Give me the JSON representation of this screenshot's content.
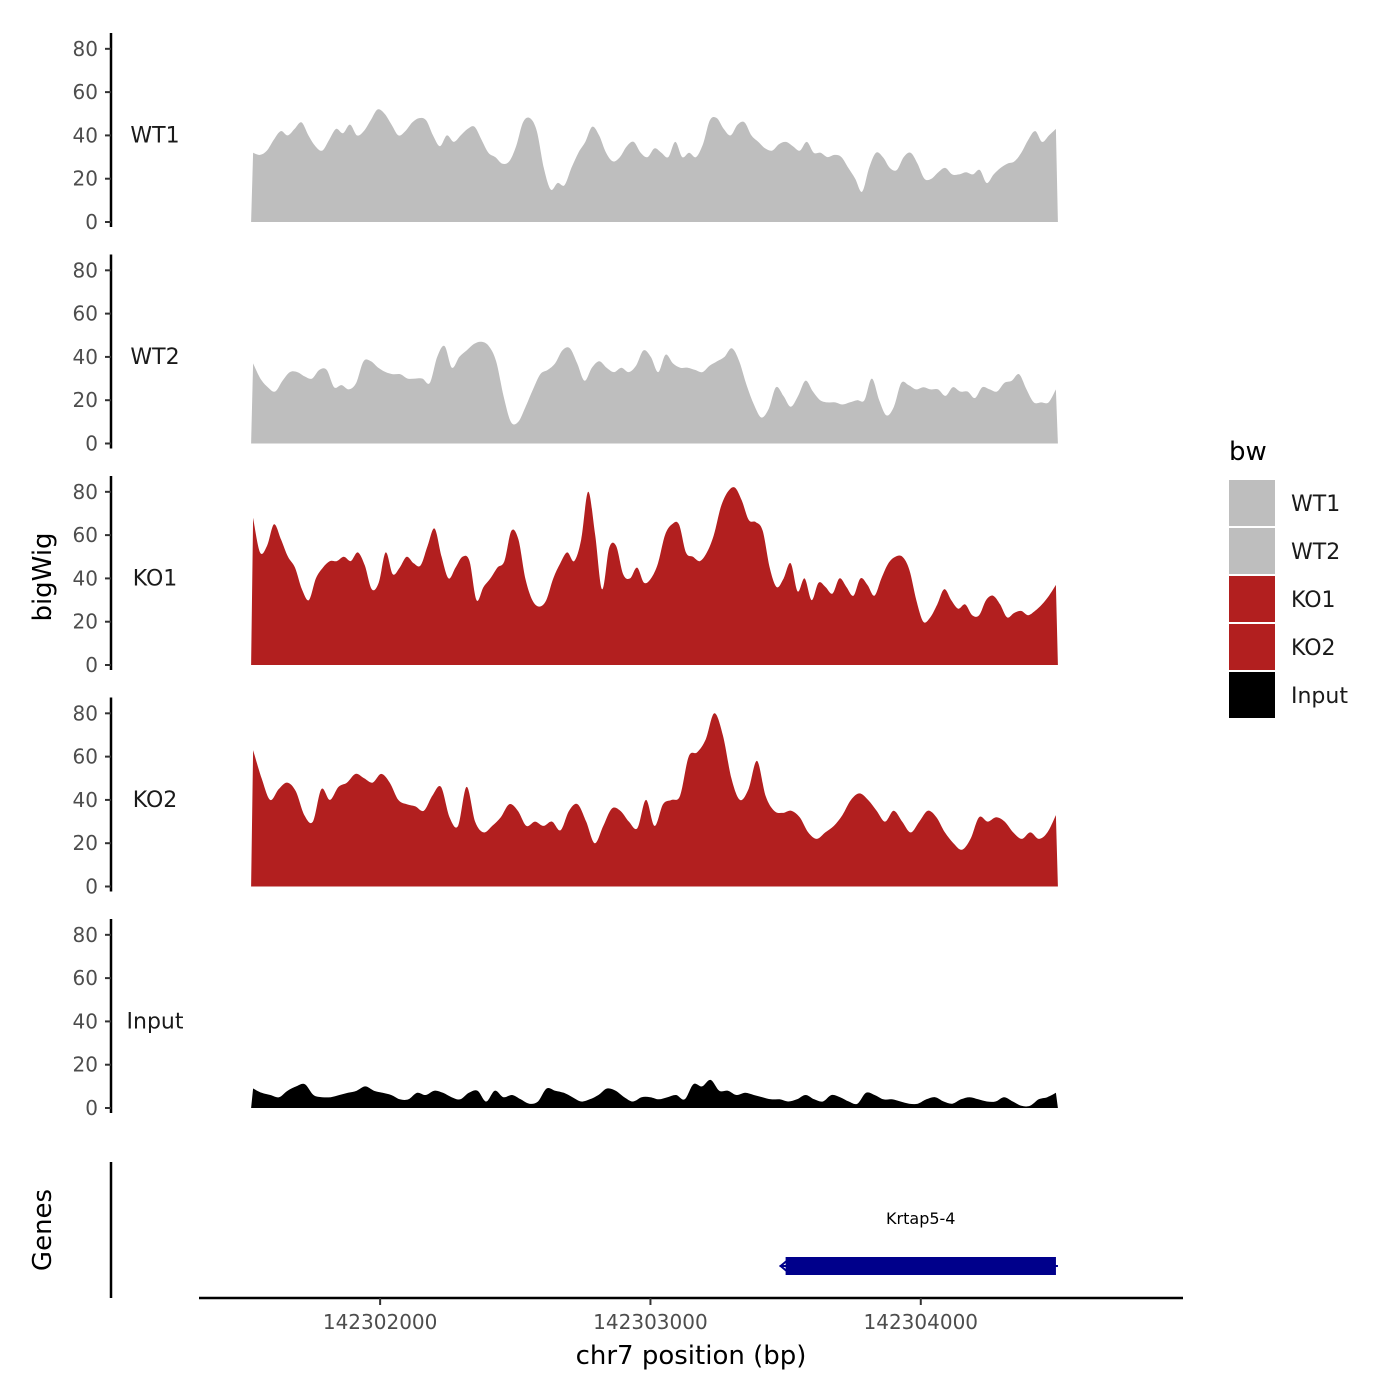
{
  "chart_data": {
    "type": "area",
    "ylabel": "bigWig",
    "xlabel": "chr7 position (bp)",
    "gene_track_label": "Genes",
    "ylim": [
      0,
      85
    ],
    "yticks": [
      0,
      20,
      40,
      60,
      80
    ],
    "xlim": [
      142301330,
      142304970
    ],
    "xticks": [
      142302000,
      142303000,
      142304000
    ],
    "x_start": 142301530,
    "x_end": 142304500,
    "legend": {
      "title": "bw",
      "placement": "right",
      "entries": [
        {
          "label": "WT1",
          "color": "#bebebe"
        },
        {
          "label": "WT2",
          "color": "#bebebe"
        },
        {
          "label": "KO1",
          "color": "#b21f1f"
        },
        {
          "label": "KO2",
          "color": "#b21f1f"
        },
        {
          "label": "Input",
          "color": "#000000"
        }
      ]
    },
    "series": [
      {
        "name": "WT1",
        "color": "#bebebe",
        "values": [
          32,
          31,
          33,
          38,
          42,
          40,
          43,
          46,
          40,
          35,
          33,
          38,
          43,
          41,
          45,
          40,
          42,
          47,
          52,
          50,
          45,
          40,
          42,
          46,
          48,
          47,
          40,
          35,
          40,
          37,
          40,
          43,
          44,
          38,
          32,
          30,
          27,
          28,
          35,
          46,
          48,
          42,
          25,
          15,
          18,
          17,
          25,
          32,
          37,
          44,
          40,
          32,
          28,
          30,
          35,
          37,
          32,
          30,
          34,
          32,
          30,
          37,
          30,
          32,
          30,
          36,
          47,
          48,
          43,
          40,
          45,
          46,
          40,
          37,
          34,
          33,
          36,
          37,
          35,
          33,
          37,
          32,
          32,
          30,
          31,
          30,
          25,
          20,
          14,
          25,
          32,
          30,
          25,
          24,
          30,
          32,
          27,
          20,
          20,
          23,
          25,
          22,
          22,
          23,
          22,
          24,
          18,
          22,
          25,
          27,
          28,
          32,
          38,
          42,
          37,
          40,
          43
        ]
      },
      {
        "name": "WT2",
        "color": "#bebebe",
        "values": [
          37,
          30,
          26,
          24,
          29,
          33,
          33,
          31,
          30,
          34,
          34,
          26,
          27,
          25,
          28,
          38,
          38,
          35,
          33,
          32,
          32,
          30,
          30,
          30,
          28,
          40,
          45,
          35,
          40,
          43,
          46,
          47,
          45,
          38,
          22,
          10,
          10,
          17,
          25,
          32,
          34,
          37,
          43,
          44,
          37,
          29,
          35,
          38,
          35,
          33,
          35,
          33,
          36,
          43,
          40,
          33,
          41,
          37,
          35,
          35,
          34,
          33,
          36,
          38,
          40,
          44,
          38,
          27,
          18,
          12,
          16,
          26,
          22,
          17,
          22,
          29,
          24,
          20,
          19,
          19,
          18,
          19,
          20,
          20,
          30,
          20,
          13,
          17,
          28,
          27,
          25,
          26,
          25,
          25,
          22,
          26,
          24,
          24,
          21,
          26,
          25,
          24,
          28,
          29,
          32,
          25,
          19,
          19,
          19,
          25
        ]
      },
      {
        "name": "KO1",
        "color": "#b21f1f",
        "values": [
          68,
          52,
          55,
          65,
          58,
          50,
          45,
          35,
          30,
          40,
          45,
          48,
          48,
          50,
          48,
          52,
          46,
          35,
          38,
          52,
          42,
          45,
          50,
          47,
          46,
          55,
          63,
          50,
          40,
          45,
          50,
          48,
          30,
          36,
          40,
          45,
          48,
          62,
          58,
          40,
          30,
          27,
          30,
          40,
          47,
          52,
          48,
          58,
          80,
          60,
          35,
          54,
          55,
          42,
          40,
          45,
          38,
          40,
          47,
          60,
          65,
          65,
          52,
          50,
          48,
          52,
          60,
          73,
          80,
          82,
          76,
          67,
          66,
          62,
          45,
          36,
          40,
          47,
          34,
          40,
          30,
          38,
          36,
          33,
          40,
          36,
          32,
          40,
          37,
          32,
          40,
          47,
          50,
          50,
          44,
          30,
          20,
          22,
          28,
          35,
          30,
          26,
          28,
          23,
          23,
          30,
          32,
          28,
          22,
          24,
          25,
          23,
          25,
          28,
          32,
          37
        ]
      },
      {
        "name": "KO2",
        "color": "#b21f1f",
        "values": [
          63,
          50,
          40,
          45,
          48,
          44,
          33,
          30,
          45,
          40,
          46,
          48,
          52,
          50,
          48,
          52,
          48,
          40,
          38,
          37,
          35,
          42,
          46,
          32,
          28,
          46,
          30,
          25,
          28,
          32,
          38,
          35,
          28,
          30,
          28,
          30,
          26,
          35,
          38,
          30,
          20,
          28,
          36,
          35,
          30,
          27,
          40,
          28,
          38,
          40,
          42,
          60,
          62,
          68,
          80,
          70,
          50,
          40,
          45,
          58,
          42,
          35,
          34,
          35,
          32,
          25,
          22,
          25,
          28,
          33,
          40,
          43,
          40,
          35,
          30,
          35,
          30,
          25,
          30,
          35,
          32,
          25,
          20,
          17,
          22,
          32,
          30,
          32,
          30,
          25,
          22,
          25,
          22,
          25,
          33
        ]
      },
      {
        "name": "Input",
        "color": "#000000",
        "values": [
          9,
          7,
          6,
          5,
          8,
          10,
          11,
          6,
          5,
          5,
          6,
          7,
          8,
          10,
          8,
          7,
          6,
          4,
          4,
          7,
          6,
          8,
          7,
          5,
          4,
          7,
          8,
          3,
          8,
          5,
          6,
          4,
          2,
          3,
          9,
          8,
          7,
          5,
          3,
          4,
          6,
          9,
          8,
          5,
          3,
          5,
          5,
          4,
          5,
          6,
          4,
          11,
          10,
          13,
          8,
          8,
          6,
          7,
          6,
          5,
          4,
          4,
          3,
          4,
          6,
          4,
          3,
          6,
          5,
          3,
          2,
          7,
          6,
          4,
          4,
          3,
          2,
          2,
          4,
          5,
          3,
          2,
          4,
          5,
          4,
          3,
          3,
          5,
          3,
          1,
          1,
          4,
          5,
          7
        ]
      }
    ],
    "gene": {
      "name": "Krtap5-4",
      "start": 142303500,
      "end": 142304500,
      "strand": "-",
      "color": "#00008b"
    }
  }
}
